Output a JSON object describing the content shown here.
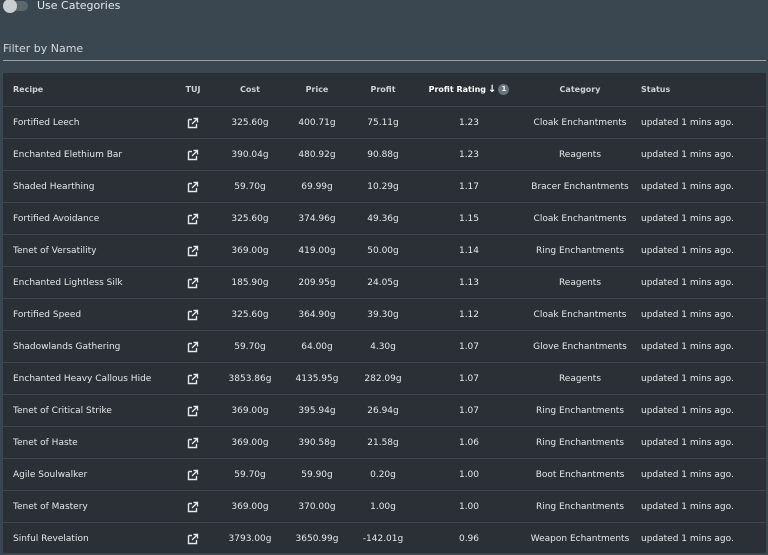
{
  "toggle": {
    "label": "Use Categories",
    "on": false
  },
  "filter": {
    "placeholder": "Filter by Name"
  },
  "columns": {
    "recipe": "Recipe",
    "tuj": "TUJ",
    "cost": "Cost",
    "price": "Price",
    "profit": "Profit",
    "profit_rating": "Profit Rating",
    "sort_order": "1",
    "category": "Category",
    "status": "Status"
  },
  "rows": [
    {
      "recipe": "Fortified Leech",
      "cost": "325.60g",
      "price": "400.71g",
      "profit": "75.11g",
      "rating": "1.23",
      "category": "Cloak Enchantments",
      "status": "updated 1 mins ago."
    },
    {
      "recipe": "Enchanted Elethium Bar",
      "cost": "390.04g",
      "price": "480.92g",
      "profit": "90.88g",
      "rating": "1.23",
      "category": "Reagents",
      "status": "updated 1 mins ago."
    },
    {
      "recipe": "Shaded Hearthing",
      "cost": "59.70g",
      "price": "69.99g",
      "profit": "10.29g",
      "rating": "1.17",
      "category": "Bracer Enchantments",
      "status": "updated 1 mins ago."
    },
    {
      "recipe": "Fortified Avoidance",
      "cost": "325.60g",
      "price": "374.96g",
      "profit": "49.36g",
      "rating": "1.15",
      "category": "Cloak Enchantments",
      "status": "updated 1 mins ago."
    },
    {
      "recipe": "Tenet of Versatility",
      "cost": "369.00g",
      "price": "419.00g",
      "profit": "50.00g",
      "rating": "1.14",
      "category": "Ring Enchantments",
      "status": "updated 1 mins ago."
    },
    {
      "recipe": "Enchanted Lightless Silk",
      "cost": "185.90g",
      "price": "209.95g",
      "profit": "24.05g",
      "rating": "1.13",
      "category": "Reagents",
      "status": "updated 1 mins ago."
    },
    {
      "recipe": "Fortified Speed",
      "cost": "325.60g",
      "price": "364.90g",
      "profit": "39.30g",
      "rating": "1.12",
      "category": "Cloak Enchantments",
      "status": "updated 1 mins ago."
    },
    {
      "recipe": "Shadowlands Gathering",
      "cost": "59.70g",
      "price": "64.00g",
      "profit": "4.30g",
      "rating": "1.07",
      "category": "Glove Enchantments",
      "status": "updated 1 mins ago."
    },
    {
      "recipe": "Enchanted Heavy Callous Hide",
      "cost": "3853.86g",
      "price": "4135.95g",
      "profit": "282.09g",
      "rating": "1.07",
      "category": "Reagents",
      "status": "updated 1 mins ago."
    },
    {
      "recipe": "Tenet of Critical Strike",
      "cost": "369.00g",
      "price": "395.94g",
      "profit": "26.94g",
      "rating": "1.07",
      "category": "Ring Enchantments",
      "status": "updated 1 mins ago."
    },
    {
      "recipe": "Tenet of Haste",
      "cost": "369.00g",
      "price": "390.58g",
      "profit": "21.58g",
      "rating": "1.06",
      "category": "Ring Enchantments",
      "status": "updated 1 mins ago."
    },
    {
      "recipe": "Agile Soulwalker",
      "cost": "59.70g",
      "price": "59.90g",
      "profit": "0.20g",
      "rating": "1.00",
      "category": "Boot Enchantments",
      "status": "updated 1 mins ago."
    },
    {
      "recipe": "Tenet of Mastery",
      "cost": "369.00g",
      "price": "370.00g",
      "profit": "1.00g",
      "rating": "1.00",
      "category": "Ring Enchantments",
      "status": "updated 1 mins ago."
    },
    {
      "recipe": "Sinful Revelation",
      "cost": "3793.00g",
      "price": "3650.99g",
      "profit": "-142.01g",
      "rating": "0.96",
      "category": "Weapon Echantments",
      "status": "updated 1 mins ago."
    }
  ]
}
